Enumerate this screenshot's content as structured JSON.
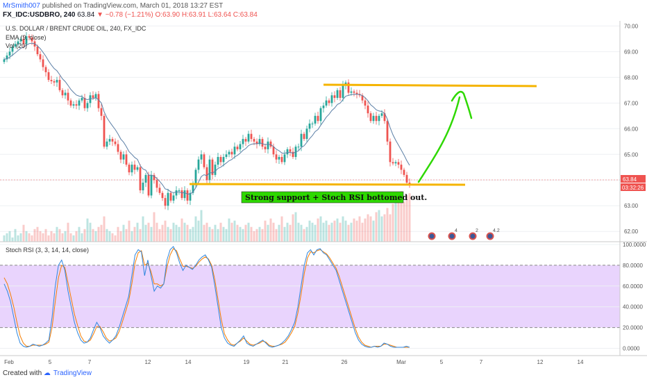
{
  "header": {
    "author": "MrSmith007",
    "published": "published on TradingView.com, March 01, 2018 13:27 EST",
    "symbol": "FX_IDC:USDBRO, 240",
    "last": "63.84",
    "change": "▼ −0.78 (−1.21%)",
    "ohlc": "O:63.90 H:63.91 L:63.64 C:63.84"
  },
  "legend": {
    "title": "U.S. DOLLAR / BRENT CRUDE OIL, 240, FX_IDC",
    "ema": "EMA (9, close)",
    "vol": "Vol (20)",
    "stoch": "Stoch RSI (3, 3, 14, 14, close)"
  },
  "annotation": "Strong support + Stoch RSI bottomed out.",
  "price_tags": {
    "last": "63.84",
    "timer": "03:32:26"
  },
  "footer": {
    "created_with": "Created with",
    "brand": "TradingView"
  },
  "colors": {
    "bull": "#26a69a",
    "bear": "#ef5350",
    "ema": "#5b7fa6",
    "trendline": "#f5b400",
    "arrow": "#2ed800",
    "stoch_k": "#2e86de",
    "stoch_d": "#f57c00",
    "stoch_band": "#e1c6fc",
    "label_bg": "#2ed800"
  },
  "chart_data": [
    {
      "type": "candlestick",
      "title": "U.S. DOLLAR / BRENT CRUDE OIL, 240, FX_IDC",
      "x_tick_labels": [
        "Feb",
        "5",
        "7",
        "12",
        "14",
        "19",
        "21",
        "26",
        "Mar",
        "5",
        "7",
        "12",
        "14"
      ],
      "y_ticks": [
        "62.00",
        "63.00",
        "64.00",
        "65.00",
        "66.00",
        "67.00",
        "68.00",
        "69.00",
        "70.00"
      ],
      "ylim": [
        61.6,
        70.2
      ],
      "close": [
        68.7,
        68.85,
        69.0,
        69.2,
        69.3,
        69.4,
        69.5,
        69.3,
        69.6,
        69.55,
        69.4,
        69.2,
        68.9,
        68.7,
        68.4,
        68.2,
        67.9,
        67.85,
        67.8,
        67.9,
        67.5,
        67.3,
        67.4,
        67.1,
        66.9,
        66.95,
        66.9,
        67.1,
        67.2,
        66.8,
        67.0,
        67.3,
        67.2,
        67.35,
        66.8,
        66.5,
        65.3,
        65.5,
        65.6,
        65.5,
        65.4,
        65.1,
        64.8,
        65.0,
        64.6,
        64.3,
        64.6,
        64.4,
        64.5,
        63.6,
        63.9,
        64.2,
        63.4,
        64.2,
        64.0,
        63.7,
        63.5,
        63.3,
        63.0,
        63.5,
        63.2,
        63.4,
        63.6,
        63.6,
        63.3,
        63.6,
        63.2,
        63.5,
        63.8,
        64.4,
        64.8,
        65.0,
        64.5,
        64.0,
        64.8,
        64.2,
        64.6,
        64.9,
        64.7,
        64.9,
        65.0,
        65.1,
        65.0,
        65.3,
        65.2,
        65.4,
        65.6,
        65.5,
        65.8,
        65.6,
        65.5,
        65.4,
        65.6,
        65.3,
        65.2,
        65.5,
        65.3,
        65.0,
        64.8,
        64.9,
        64.7,
        65.0,
        65.2,
        65.1,
        64.9,
        65.3,
        65.3,
        65.8,
        65.6,
        66.0,
        66.2,
        66.2,
        66.5,
        66.3,
        66.8,
        66.9,
        67.1,
        67.0,
        67.3,
        67.2,
        67.5,
        67.2,
        67.7,
        67.8,
        67.4,
        67.45,
        67.4,
        67.35,
        67.3,
        67.1,
        66.9,
        66.6,
        66.3,
        66.5,
        66.3,
        66.5,
        66.6,
        66.3,
        65.5,
        64.7,
        64.65,
        64.7,
        64.6,
        64.4,
        64.2,
        63.9,
        63.84
      ],
      "ema": {
        "name": "EMA (9, close)",
        "period": 9
      }
    },
    {
      "type": "line",
      "title": "Stoch RSI (3, 3, 14, 14, close)",
      "y_ticks": [
        "0.0000",
        "20.0000",
        "40.0000",
        "60.0000",
        "80.0000",
        "100.0000"
      ],
      "ylim": [
        -5,
        100
      ],
      "bands": [
        20,
        80
      ],
      "k": [
        62,
        55,
        45,
        30,
        15,
        5,
        2,
        1,
        2,
        4,
        3,
        2,
        3,
        5,
        8,
        30,
        60,
        80,
        85,
        75,
        55,
        40,
        25,
        15,
        8,
        5,
        6,
        10,
        18,
        25,
        20,
        12,
        8,
        5,
        8,
        12,
        20,
        30,
        40,
        50,
        70,
        90,
        95,
        93,
        70,
        85,
        70,
        55,
        60,
        58,
        62,
        85,
        95,
        98,
        92,
        82,
        75,
        80,
        78,
        76,
        80,
        85,
        88,
        90,
        85,
        78,
        60,
        40,
        20,
        10,
        5,
        3,
        2,
        5,
        8,
        12,
        5,
        3,
        2,
        4,
        6,
        8,
        5,
        2,
        1,
        2,
        3,
        5,
        8,
        12,
        18,
        25,
        40,
        60,
        80,
        92,
        95,
        90,
        95,
        96,
        92,
        90,
        85,
        80,
        75,
        65,
        55,
        45,
        35,
        25,
        15,
        8,
        4,
        2,
        1,
        1,
        2,
        1,
        2,
        5,
        4,
        2,
        1,
        1,
        1,
        1,
        2,
        1
      ],
      "d": [
        68,
        62,
        52,
        40,
        25,
        12,
        5,
        2,
        2,
        3,
        3,
        3,
        3,
        4,
        6,
        20,
        45,
        68,
        80,
        78,
        63,
        48,
        33,
        22,
        12,
        7,
        6,
        8,
        14,
        21,
        21,
        16,
        10,
        7,
        8,
        10,
        16,
        25,
        35,
        45,
        62,
        82,
        92,
        94,
        80,
        82,
        74,
        62,
        62,
        60,
        62,
        78,
        90,
        96,
        94,
        86,
        79,
        79,
        78,
        77,
        79,
        83,
        86,
        88,
        86,
        80,
        66,
        47,
        28,
        14,
        8,
        4,
        3,
        5,
        7,
        10,
        7,
        4,
        3,
        4,
        5,
        7,
        6,
        3,
        2,
        2,
        3,
        4,
        6,
        10,
        15,
        21,
        34,
        52,
        72,
        87,
        93,
        92,
        94,
        95,
        93,
        91,
        87,
        82,
        77,
        69,
        59,
        49,
        39,
        29,
        19,
        11,
        6,
        3,
        2,
        1,
        2,
        2,
        2,
        4,
        4,
        3,
        2,
        1,
        1,
        1,
        1,
        1
      ]
    },
    {
      "type": "bar",
      "title": "Vol (20)",
      "note": "volume histogram, colored by candle direction",
      "values": [
        3,
        4,
        5,
        2,
        6,
        3,
        4,
        8,
        5,
        4,
        3,
        6,
        7,
        5,
        4,
        6,
        3,
        5,
        4,
        7,
        6,
        4,
        5,
        9,
        4,
        3,
        5,
        7,
        4,
        6,
        11,
        9,
        6,
        5,
        7,
        8,
        12,
        6,
        5,
        4,
        3,
        7,
        5,
        8,
        6,
        10,
        5,
        7,
        9,
        6,
        12,
        8,
        9,
        7,
        14,
        9,
        6,
        8,
        10,
        7,
        6,
        9,
        8,
        7,
        11,
        9,
        8,
        6,
        7,
        12,
        10,
        15,
        8,
        9,
        7,
        6,
        8,
        6,
        9,
        7,
        6,
        11,
        9,
        10,
        8,
        7,
        6,
        8,
        9,
        7,
        5,
        6,
        7,
        6,
        10,
        8,
        11,
        9,
        6,
        8,
        12,
        7,
        9,
        8,
        13,
        14,
        9,
        8,
        6,
        7,
        10,
        9,
        8,
        11,
        12,
        9,
        10,
        8,
        9,
        10,
        11,
        9,
        12,
        10,
        8,
        9,
        11,
        10,
        12,
        9,
        11,
        13,
        12,
        10,
        14,
        15,
        12,
        13,
        16,
        13,
        18,
        22,
        20,
        24,
        19,
        22,
        23,
        20,
        28
      ],
      "events": [
        "4",
        "2",
        "4.2"
      ]
    }
  ]
}
